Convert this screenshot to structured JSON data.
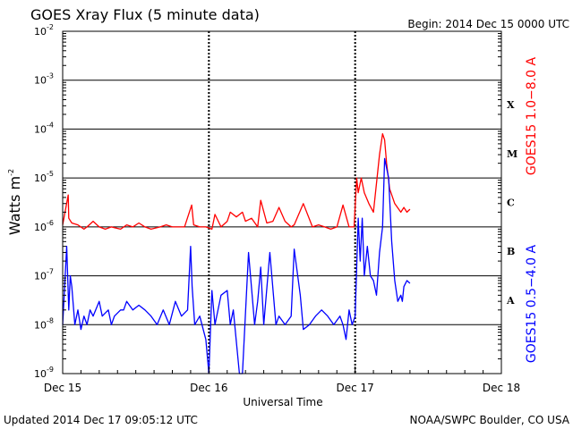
{
  "chart_data": {
    "type": "line",
    "title": "GOES Xray Flux (5 minute data)",
    "begin_label": "Begin:  2014 Dec 15 0000 UTC",
    "xlabel": "Universal Time",
    "ylabel": "Watts m",
    "ylabel_sup": "-2",
    "y_scale": "log",
    "ylim": [
      1e-09,
      0.01
    ],
    "y_ticks": [
      {
        "value": 0.01,
        "base": "10",
        "exp": "-2"
      },
      {
        "value": 0.001,
        "base": "10",
        "exp": "-3"
      },
      {
        "value": 0.0001,
        "base": "10",
        "exp": "-4"
      },
      {
        "value": 1e-05,
        "base": "10",
        "exp": "-5"
      },
      {
        "value": 1e-06,
        "base": "10",
        "exp": "-6"
      },
      {
        "value": 1e-07,
        "base": "10",
        "exp": "-7"
      },
      {
        "value": 1e-08,
        "base": "10",
        "exp": "-8"
      },
      {
        "value": 1e-09,
        "base": "10",
        "exp": "-9"
      }
    ],
    "xlim": [
      "2014-12-15 00:00",
      "2014-12-18 00:00"
    ],
    "x_ticks": [
      {
        "time": "2014-12-15 00:00",
        "label": "Dec 15"
      },
      {
        "time": "2014-12-16 00:00",
        "label": "Dec 16"
      },
      {
        "time": "2014-12-17 00:00",
        "label": "Dec 17"
      },
      {
        "time": "2014-12-18 00:00",
        "label": "Dec 18"
      }
    ],
    "flare_classes": [
      {
        "label": "X",
        "level": 0.0001
      },
      {
        "label": "M",
        "level": 1e-05
      },
      {
        "label": "C",
        "level": 1e-06
      },
      {
        "label": "B",
        "level": 1e-07
      },
      {
        "label": "A",
        "level": 1e-08
      }
    ],
    "grid": true,
    "series": [
      {
        "name": "GOES15 1.0−8.0 A",
        "color": "#ff0000",
        "x": [
          "2014-12-15 00:00",
          "2014-12-15 00:55",
          "2014-12-15 01:00",
          "2014-12-15 01:30",
          "2014-12-15 02:30",
          "2014-12-15 03:30",
          "2014-12-15 04:00",
          "2014-12-15 05:00",
          "2014-12-15 06:00",
          "2014-12-15 07:00",
          "2014-12-15 08:00",
          "2014-12-15 09:30",
          "2014-12-15 10:30",
          "2014-12-15 11:30",
          "2014-12-15 12:30",
          "2014-12-15 13:30",
          "2014-12-15 14:30",
          "2014-12-15 16:00",
          "2014-12-15 17:00",
          "2014-12-15 18:00",
          "2014-12-15 19:00",
          "2014-12-15 20:00",
          "2014-12-15 21:10",
          "2014-12-15 21:30",
          "2014-12-15 22:30",
          "2014-12-15 23:30",
          "2014-12-16 00:30",
          "2014-12-16 01:00",
          "2014-12-16 02:00",
          "2014-12-16 03:00",
          "2014-12-16 03:30",
          "2014-12-16 04:30",
          "2014-12-16 05:30",
          "2014-12-16 06:00",
          "2014-12-16 07:00",
          "2014-12-16 08:00",
          "2014-12-16 08:30",
          "2014-12-16 09:30",
          "2014-12-16 10:30",
          "2014-12-16 11:30",
          "2014-12-16 12:30",
          "2014-12-16 13:30",
          "2014-12-16 14:00",
          "2014-12-16 15:30",
          "2014-12-16 17:00",
          "2014-12-16 18:00",
          "2014-12-16 19:00",
          "2014-12-16 20:00",
          "2014-12-16 21:00",
          "2014-12-16 22:00",
          "2014-12-16 23:00",
          "2014-12-16 23:50",
          "2014-12-17 00:15",
          "2014-12-17 00:30",
          "2014-12-17 01:00",
          "2014-12-17 01:30",
          "2014-12-17 02:15",
          "2014-12-17 03:00",
          "2014-12-17 04:00",
          "2014-12-17 04:30",
          "2014-12-17 04:50",
          "2014-12-17 05:10",
          "2014-12-17 05:40",
          "2014-12-17 06:30",
          "2014-12-17 07:30",
          "2014-12-17 08:00",
          "2014-12-17 08:30",
          "2014-12-17 09:00"
        ],
        "values": [
          1.1e-06,
          4.5e-06,
          1.5e-06,
          1.2e-06,
          1.1e-06,
          9e-07,
          1e-06,
          1.3e-06,
          1e-06,
          9e-07,
          1e-06,
          9e-07,
          1.1e-06,
          1e-06,
          1.2e-06,
          1e-06,
          9e-07,
          1e-06,
          1.1e-06,
          1e-06,
          1e-06,
          1e-06,
          2.8e-06,
          1.1e-06,
          1e-06,
          1e-06,
          9e-07,
          1.8e-06,
          1e-06,
          1.3e-06,
          2e-06,
          1.6e-06,
          2e-06,
          1.3e-06,
          1.5e-06,
          1e-06,
          3.5e-06,
          1.2e-06,
          1.3e-06,
          2.5e-06,
          1.3e-06,
          1e-06,
          1.1e-06,
          3e-06,
          1e-06,
          1.1e-06,
          1e-06,
          9e-07,
          1e-06,
          2.8e-06,
          1e-06,
          1e-06,
          1e-05,
          5e-06,
          1e-05,
          5e-06,
          3e-06,
          2e-06,
          3e-05,
          8e-05,
          6e-05,
          2e-05,
          6e-06,
          3e-06,
          2e-06,
          2.5e-06,
          2e-06,
          2.3e-06
        ]
      },
      {
        "name": "GOES15 0.5−4.0 A",
        "color": "#0000ff",
        "x": [
          "2014-12-15 00:00",
          "2014-12-15 00:40",
          "2014-12-15 01:00",
          "2014-12-15 01:15",
          "2014-12-15 01:30",
          "2014-12-15 02:00",
          "2014-12-15 02:30",
          "2014-12-15 03:00",
          "2014-12-15 03:30",
          "2014-12-15 04:00",
          "2014-12-15 04:30",
          "2014-12-15 05:00",
          "2014-12-15 06:00",
          "2014-12-15 06:30",
          "2014-12-15 07:30",
          "2014-12-15 08:00",
          "2014-12-15 08:30",
          "2014-12-15 09:30",
          "2014-12-15 10:00",
          "2014-12-15 10:30",
          "2014-12-15 11:30",
          "2014-12-15 12:30",
          "2014-12-15 13:30",
          "2014-12-15 14:30",
          "2014-12-15 15:30",
          "2014-12-15 16:30",
          "2014-12-15 17:30",
          "2014-12-15 18:30",
          "2014-12-15 19:30",
          "2014-12-15 20:30",
          "2014-12-15 21:00",
          "2014-12-15 21:15",
          "2014-12-15 21:40",
          "2014-12-15 22:30",
          "2014-12-15 23:30",
          "2014-12-16 00:00",
          "2014-12-16 00:30",
          "2014-12-16 01:00",
          "2014-12-16 01:30",
          "2014-12-16 02:00",
          "2014-12-16 03:00",
          "2014-12-16 03:30",
          "2014-12-16 04:00",
          "2014-12-16 05:00",
          "2014-12-16 05:30",
          "2014-12-16 06:30",
          "2014-12-16 07:30",
          "2014-12-16 08:00",
          "2014-12-16 08:30",
          "2014-12-16 09:00",
          "2014-12-16 10:00",
          "2014-12-16 11:00",
          "2014-12-16 11:30",
          "2014-12-16 12:30",
          "2014-12-16 13:30",
          "2014-12-16 14:00",
          "2014-12-16 15:00",
          "2014-12-16 15:30",
          "2014-12-16 16:30",
          "2014-12-16 17:30",
          "2014-12-16 18:30",
          "2014-12-16 19:30",
          "2014-12-16 20:30",
          "2014-12-16 21:30",
          "2014-12-16 22:00",
          "2014-12-16 22:30",
          "2014-12-16 23:00",
          "2014-12-16 23:30",
          "2014-12-17 00:00",
          "2014-12-17 00:30",
          "2014-12-17 00:50",
          "2014-12-17 01:10",
          "2014-12-17 01:30",
          "2014-12-17 02:00",
          "2014-12-17 02:30",
          "2014-12-17 03:00",
          "2014-12-17 03:30",
          "2014-12-17 04:00",
          "2014-12-17 04:30",
          "2014-12-17 04:50",
          "2014-12-17 05:30",
          "2014-12-17 06:00",
          "2014-12-17 06:30",
          "2014-12-17 07:00",
          "2014-12-17 07:30",
          "2014-12-17 07:45",
          "2014-12-17 08:00",
          "2014-12-17 08:30",
          "2014-12-17 09:00"
        ],
        "values": [
          1e-08,
          4e-07,
          2e-08,
          1e-07,
          6e-08,
          1e-08,
          2e-08,
          8e-09,
          1.5e-08,
          1e-08,
          2e-08,
          1.5e-08,
          3e-08,
          1.5e-08,
          2e-08,
          1e-08,
          1.5e-08,
          2e-08,
          2e-08,
          3e-08,
          2e-08,
          2.5e-08,
          2e-08,
          1.5e-08,
          1e-08,
          2e-08,
          1e-08,
          3e-08,
          1.5e-08,
          2e-08,
          4e-07,
          6e-08,
          1e-08,
          1.5e-08,
          5e-09,
          1e-09,
          5e-08,
          1e-08,
          2e-08,
          4e-08,
          5e-08,
          1e-08,
          2e-08,
          1e-09,
          1e-09,
          3e-07,
          1e-08,
          3e-08,
          1.5e-07,
          1e-08,
          3e-07,
          1e-08,
          1.5e-08,
          1e-08,
          1.5e-08,
          3.5e-07,
          4e-08,
          8e-09,
          1e-08,
          1.5e-08,
          2e-08,
          1.5e-08,
          1e-08,
          1.5e-08,
          1e-08,
          5e-09,
          2e-08,
          1e-08,
          1.5e-08,
          1.5e-06,
          2e-07,
          1.5e-06,
          1e-07,
          4e-07,
          1e-07,
          8e-08,
          4e-08,
          3e-07,
          1e-06,
          2.5e-05,
          1e-05,
          5e-07,
          8e-08,
          3e-08,
          4e-08,
          3e-08,
          6e-08,
          8e-08,
          7e-08
        ]
      }
    ]
  },
  "footer": {
    "updated": "Updated 2014 Dec 17 09:05:12 UTC",
    "credit": "NOAA/SWPC Boulder, CO USA"
  }
}
